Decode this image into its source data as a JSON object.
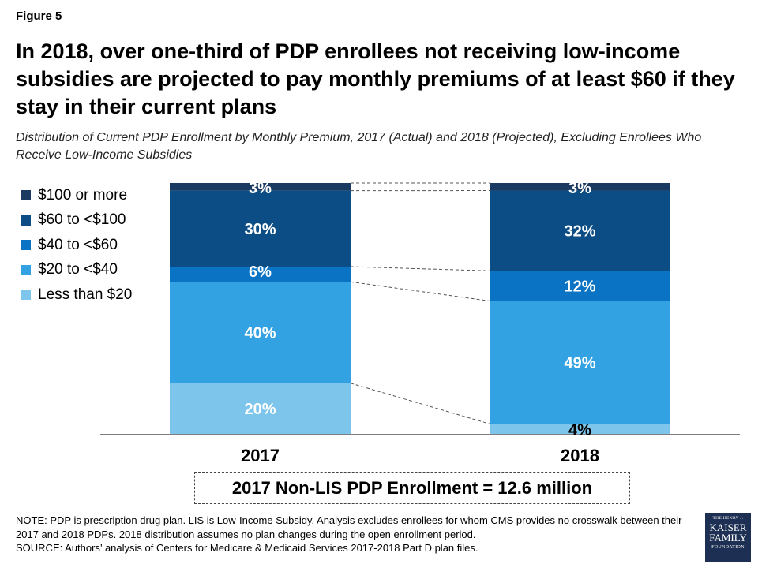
{
  "figure_label": "Figure 5",
  "title": "In 2018, over one-third of PDP enrollees not receiving low-income subsidies are projected to pay monthly premiums of at least $60 if they stay in their current plans",
  "subtitle": "Distribution of Current PDP Enrollment by Monthly Premium, 2017 (Actual) and 2018 (Projected), Excluding Enrollees Who Receive Low-Income Subsidies",
  "enrollment_box": "2017 Non-LIS PDP Enrollment = 12.6 million",
  "notes": [
    "NOTE: PDP is prescription drug plan. LIS is Low-Income Subsidy. Analysis excludes enrollees for whom CMS provides no crosswalk between their 2017 and 2018 PDPs. 2018 distribution assumes no plan changes during the open enrollment period.",
    "SOURCE: Authors’ analysis of Centers for Medicare & Medicaid Services 2017-2018 Part D plan files."
  ],
  "logo": {
    "line1": "THE HENRY J.",
    "line2": "KAISER",
    "line3": "FAMILY",
    "line4": "FOUNDATION"
  },
  "chart_data": {
    "type": "bar",
    "stacked": true,
    "percent": true,
    "categories": [
      "2017",
      "2018"
    ],
    "series": [
      {
        "name": "Less than $20",
        "color": "#7ec5ec",
        "values": [
          20,
          4
        ]
      },
      {
        "name": "$20 to <$40",
        "color": "#33a2e2",
        "values": [
          40,
          49
        ]
      },
      {
        "name": "$40 to <$60",
        "color": "#0b73c4",
        "values": [
          6,
          12
        ]
      },
      {
        "name": "$60 to <$100",
        "color": "#0b4d84",
        "values": [
          30,
          32
        ]
      },
      {
        "name": "$100 or more",
        "color": "#1a3a62",
        "values": [
          3,
          3
        ]
      }
    ],
    "data_labels": [
      [
        "20%",
        "4%"
      ],
      [
        "40%",
        "49%"
      ],
      [
        "6%",
        "12%"
      ],
      [
        "30%",
        "32%"
      ],
      [
        "3%",
        "3%"
      ]
    ],
    "legend_position": "top-left",
    "ylim": [
      0,
      100
    ],
    "grid": false,
    "connector_lines": true
  }
}
